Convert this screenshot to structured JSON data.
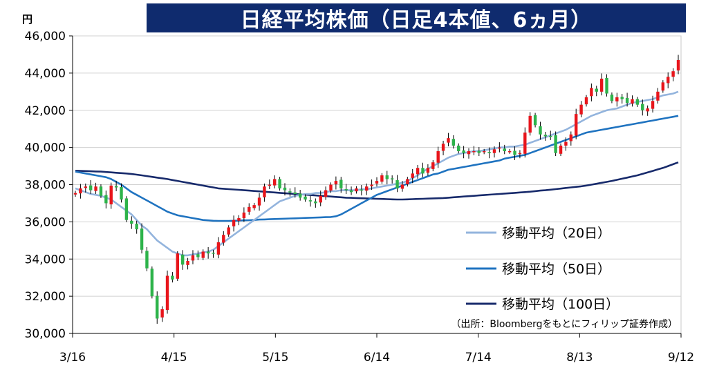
{
  "title": "日経平均株価（日足4本値、6ヵ月）",
  "unit_label": "円",
  "source_note": "（出所：Bloombergをもとにフィリップ証券作成）",
  "colors": {
    "title_bg": "#0f2b6e",
    "up": "#e8151b",
    "down": "#2db34a",
    "ma20": "#93b4dd",
    "ma50": "#1f73c0",
    "ma100": "#172a6b",
    "grid": "#d0d0d0"
  },
  "chart_data": {
    "type": "candlestick",
    "title": "日経平均株価（日足4本値、6ヵ月）",
    "ylabel": "円",
    "ylim": [
      30000,
      46000
    ],
    "yticks": [
      30000,
      32000,
      34000,
      36000,
      38000,
      40000,
      42000,
      44000,
      46000
    ],
    "ytick_labels": [
      "30,000",
      "32,000",
      "34,000",
      "36,000",
      "38,000",
      "40,000",
      "42,000",
      "44,000",
      "46,000"
    ],
    "x_labels": [
      "3/16",
      "4/15",
      "5/15",
      "6/14",
      "7/14",
      "8/13",
      "9/12"
    ],
    "grid": "horizontal",
    "legend_position": "bottom-right",
    "legend": [
      {
        "label": "移動平均（20日）",
        "key": "ma20"
      },
      {
        "label": "移動平均（50日）",
        "key": "ma50"
      },
      {
        "label": "移動平均（100日）",
        "key": "ma100"
      }
    ],
    "close": [
      37550,
      37800,
      37900,
      37700,
      37900,
      37400,
      37000,
      37950,
      37850,
      37200,
      36100,
      35900,
      35600,
      34500,
      33500,
      32000,
      30800,
      31300,
      33100,
      32900,
      34300,
      33700,
      33900,
      34200,
      34100,
      34400,
      34300,
      34300,
      34900,
      35300,
      35700,
      36100,
      36200,
      36500,
      36800,
      36900,
      37300,
      37900,
      38000,
      38300,
      37800,
      37700,
      37600,
      37500,
      37300,
      37200,
      37100,
      37000,
      37400,
      37700,
      38000,
      38200,
      37800,
      37700,
      37600,
      37800,
      37700,
      37900,
      38000,
      38200,
      38500,
      38300,
      38300,
      37800,
      38000,
      38300,
      38600,
      38900,
      38600,
      38900,
      39200,
      39800,
      40200,
      40500,
      40100,
      39800,
      39700,
      39800,
      39800,
      39700,
      39800,
      39700,
      39900,
      40000,
      39800,
      39800,
      39600,
      39700,
      40800,
      41700,
      41200,
      40700,
      40600,
      40600,
      39700,
      40100,
      40300,
      40700,
      41800,
      42300,
      42700,
      43200,
      43000,
      43700,
      42900,
      42500,
      42700,
      42600,
      42400,
      42600,
      42300,
      42000,
      42100,
      42500,
      43000,
      43500,
      43800,
      44100,
      44700
    ],
    "ma20": [
      37800,
      37700,
      37600,
      37500,
      37450,
      37400,
      37300,
      37200,
      37000,
      36800,
      36600,
      36400,
      36100,
      35800,
      35600,
      35300,
      35000,
      34800,
      34600,
      34400,
      34300,
      34200,
      34200,
      34250,
      34300,
      34350,
      34400,
      34500,
      34700,
      34900,
      35100,
      35300,
      35500,
      35700,
      35900,
      36100,
      36300,
      36500,
      36700,
      36900,
      37100,
      37200,
      37300,
      37400,
      37450,
      37500,
      37500,
      37550,
      37550,
      37600,
      37650,
      37650,
      37700,
      37700,
      37700,
      37700,
      37750,
      37750,
      37800,
      37850,
      37900,
      37950,
      38000,
      38050,
      38100,
      38200,
      38350,
      38500,
      38700,
      38850,
      39000,
      39150,
      39300,
      39450,
      39550,
      39650,
      39700,
      39750,
      39800,
      39800,
      39850,
      39900,
      39950,
      40000,
      40000,
      40050,
      40050,
      40100,
      40150,
      40250,
      40350,
      40450,
      40550,
      40650,
      40750,
      40850,
      40950,
      41100,
      41250,
      41400,
      41550,
      41700,
      41800,
      41900,
      42000,
      42050,
      42100,
      42200,
      42300,
      42400,
      42450,
      42500,
      42550,
      42600,
      42700,
      42800,
      42850,
      42900,
      43000
    ],
    "ma50": [
      38700,
      38650,
      38600,
      38550,
      38500,
      38450,
      38400,
      38300,
      38150,
      38000,
      37800,
      37600,
      37450,
      37300,
      37150,
      37000,
      36850,
      36700,
      36550,
      36450,
      36350,
      36300,
      36250,
      36200,
      36150,
      36100,
      36080,
      36060,
      36050,
      36050,
      36050,
      36060,
      36070,
      36080,
      36090,
      36100,
      36120,
      36130,
      36140,
      36150,
      36160,
      36170,
      36180,
      36190,
      36200,
      36210,
      36220,
      36230,
      36240,
      36250,
      36260,
      36300,
      36400,
      36550,
      36700,
      36850,
      37000,
      37150,
      37300,
      37450,
      37550,
      37650,
      37750,
      37850,
      37950,
      38050,
      38150,
      38250,
      38350,
      38450,
      38550,
      38600,
      38700,
      38800,
      38850,
      38900,
      38950,
      39000,
      39050,
      39100,
      39150,
      39200,
      39250,
      39300,
      39400,
      39450,
      39500,
      39550,
      39600,
      39700,
      39800,
      39900,
      40000,
      40100,
      40200,
      40300,
      40400,
      40500,
      40600,
      40700,
      40800,
      40850,
      40900,
      40950,
      41000,
      41050,
      41100,
      41150,
      41200,
      41250,
      41300,
      41350,
      41400,
      41450,
      41500,
      41550,
      41600,
      41650,
      41700
    ],
    "ma100": [
      38750,
      38740,
      38730,
      38720,
      38710,
      38700,
      38680,
      38660,
      38640,
      38620,
      38600,
      38570,
      38540,
      38500,
      38460,
      38420,
      38380,
      38340,
      38300,
      38250,
      38200,
      38150,
      38100,
      38050,
      38000,
      37950,
      37900,
      37850,
      37800,
      37780,
      37760,
      37740,
      37720,
      37700,
      37680,
      37660,
      37640,
      37620,
      37600,
      37580,
      37560,
      37540,
      37520,
      37500,
      37480,
      37460,
      37440,
      37420,
      37400,
      37380,
      37360,
      37340,
      37320,
      37300,
      37290,
      37280,
      37270,
      37260,
      37250,
      37240,
      37230,
      37220,
      37210,
      37200,
      37200,
      37210,
      37220,
      37230,
      37240,
      37250,
      37260,
      37270,
      37280,
      37300,
      37320,
      37340,
      37360,
      37380,
      37400,
      37420,
      37440,
      37460,
      37480,
      37500,
      37520,
      37540,
      37560,
      37580,
      37600,
      37620,
      37650,
      37680,
      37700,
      37730,
      37760,
      37790,
      37820,
      37850,
      37880,
      37910,
      37950,
      38000,
      38050,
      38100,
      38150,
      38200,
      38260,
      38320,
      38380,
      38440,
      38500,
      38580,
      38660,
      38740,
      38820,
      38900,
      39000,
      39100,
      39200
    ]
  }
}
